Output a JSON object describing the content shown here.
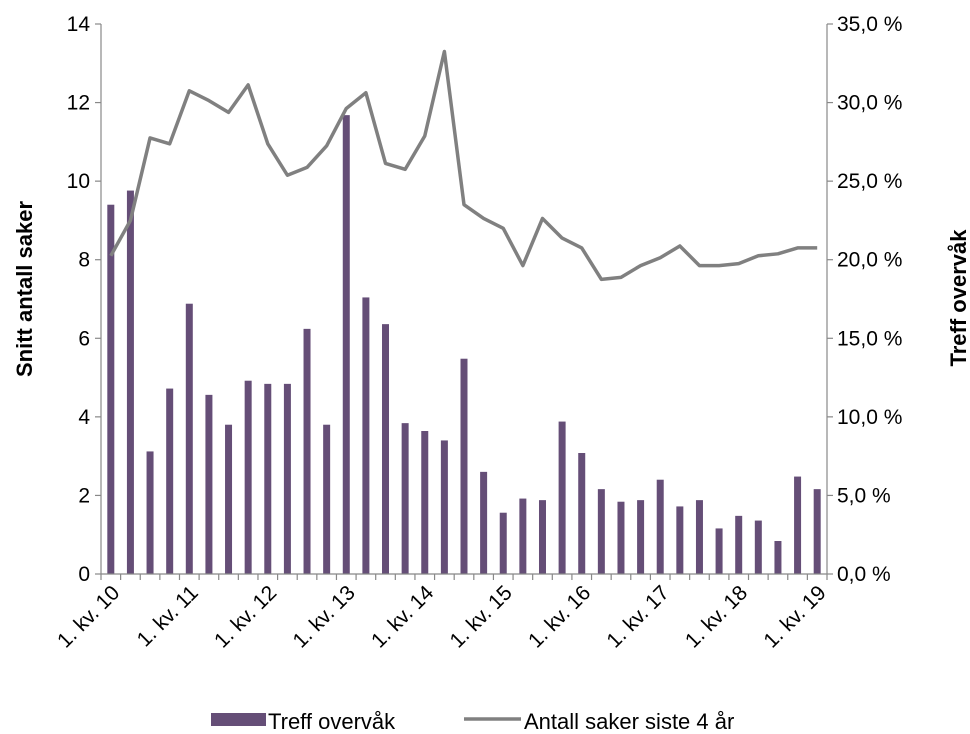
{
  "chart_data": {
    "type": "bar+line",
    "x_labels": [
      "1. kv. 10",
      "1. kv. 11",
      "1. kv. 12",
      "1. kv. 13",
      "1. kv. 14",
      "1. kv. 15",
      "1. kv. 16",
      "1. kv. 17",
      "1. kv. 18",
      "1. kv. 19"
    ],
    "y_left_label": "Snitt antall saker",
    "y_right_label": "Treff overvåk",
    "y_left_ticks": [
      "0",
      "2",
      "4",
      "6",
      "8",
      "10",
      "12",
      "14"
    ],
    "y_right_ticks": [
      "0,0 %",
      "5,0 %",
      "10,0 %",
      "15,0 %",
      "20,0 %",
      "25,0 %",
      "30,0 %",
      "35,0 %"
    ],
    "y_left_range": [
      0,
      14
    ],
    "y_right_range": [
      0,
      35
    ],
    "quarters": 37,
    "series": [
      {
        "name": "Treff overvåk",
        "type": "bar",
        "axis": "right",
        "color": "#654E77",
        "values": [
          23.5,
          24.4,
          7.8,
          11.8,
          17.2,
          11.4,
          9.5,
          12.3,
          12.1,
          12.1,
          15.6,
          9.5,
          29.2,
          17.6,
          15.9,
          9.6,
          9.1,
          8.5,
          13.7,
          6.5,
          3.9,
          4.8,
          4.7,
          9.7,
          7.7,
          5.4,
          4.6,
          4.7,
          6.0,
          4.3,
          4.7,
          2.9,
          3.7,
          3.4,
          2.1,
          6.2,
          5.4
        ]
      },
      {
        "name": "Antall saker siste 4 år",
        "type": "line",
        "axis": "left",
        "color": "#808080",
        "values": [
          8.1,
          9.0,
          11.1,
          10.95,
          12.3,
          12.05,
          11.75,
          12.45,
          10.95,
          10.15,
          10.35,
          10.9,
          11.85,
          12.25,
          10.45,
          10.3,
          11.15,
          13.3,
          9.4,
          9.05,
          8.8,
          7.85,
          9.05,
          8.55,
          8.3,
          7.5,
          7.55,
          7.85,
          8.05,
          8.35,
          7.85,
          7.85,
          7.9,
          8.1,
          8.15,
          8.3,
          8.3
        ]
      }
    ],
    "legend": "bottom"
  }
}
